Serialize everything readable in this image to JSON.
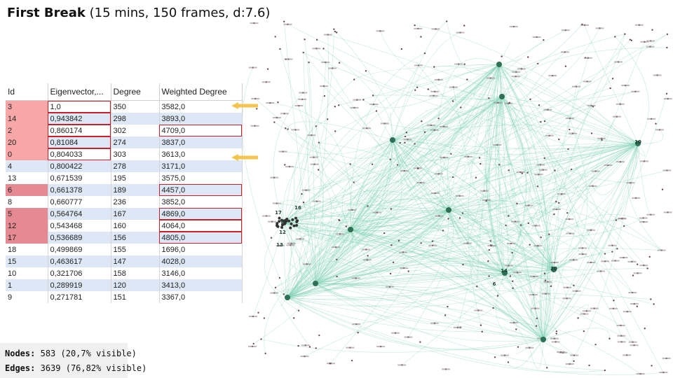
{
  "header": {
    "title_bold": "First Break",
    "title_rest": "(15 mins, 150 frames, d:7.6)"
  },
  "table": {
    "columns": [
      "Id",
      "Eigenvector,...",
      "Degree",
      "Weighted Degree"
    ],
    "rows": [
      [
        "3",
        "1,0",
        "350",
        "3582,0"
      ],
      [
        "14",
        "0,943842",
        "298",
        "3893,0"
      ],
      [
        "2",
        "0,860174",
        "302",
        "4709,0"
      ],
      [
        "20",
        "0,81084",
        "274",
        "3837,0"
      ],
      [
        "0",
        "0,804033",
        "303",
        "3613,0"
      ],
      [
        "4",
        "0,800422",
        "278",
        "3171,0"
      ],
      [
        "13",
        "0,671539",
        "195",
        "3575,0"
      ],
      [
        "6",
        "0,661378",
        "189",
        "4457,0"
      ],
      [
        "8",
        "0,660777",
        "236",
        "3852,0"
      ],
      [
        "5",
        "0,564764",
        "167",
        "4869,0"
      ],
      [
        "12",
        "0,543468",
        "160",
        "4064,0"
      ],
      [
        "17",
        "0,536689",
        "156",
        "4805,0"
      ],
      [
        "18",
        "0,499869",
        "155",
        "1696,0"
      ],
      [
        "15",
        "0,463617",
        "147",
        "4028,0"
      ],
      [
        "10",
        "0,321706",
        "158",
        "3146,0"
      ],
      [
        "1",
        "0,289919",
        "120",
        "3413,0"
      ],
      [
        "9",
        "0,271781",
        "151",
        "3367,0"
      ]
    ]
  },
  "stats": {
    "nodes_label": "Nodes:",
    "nodes_value": "583 (20,7% visible)",
    "edges_label": "Edges:",
    "edges_value": "3639 (76,82% visible)"
  },
  "graph": {
    "hub_labels": [
      "17",
      "16",
      "12",
      "13",
      "14",
      "20",
      "6",
      "10"
    ]
  }
}
